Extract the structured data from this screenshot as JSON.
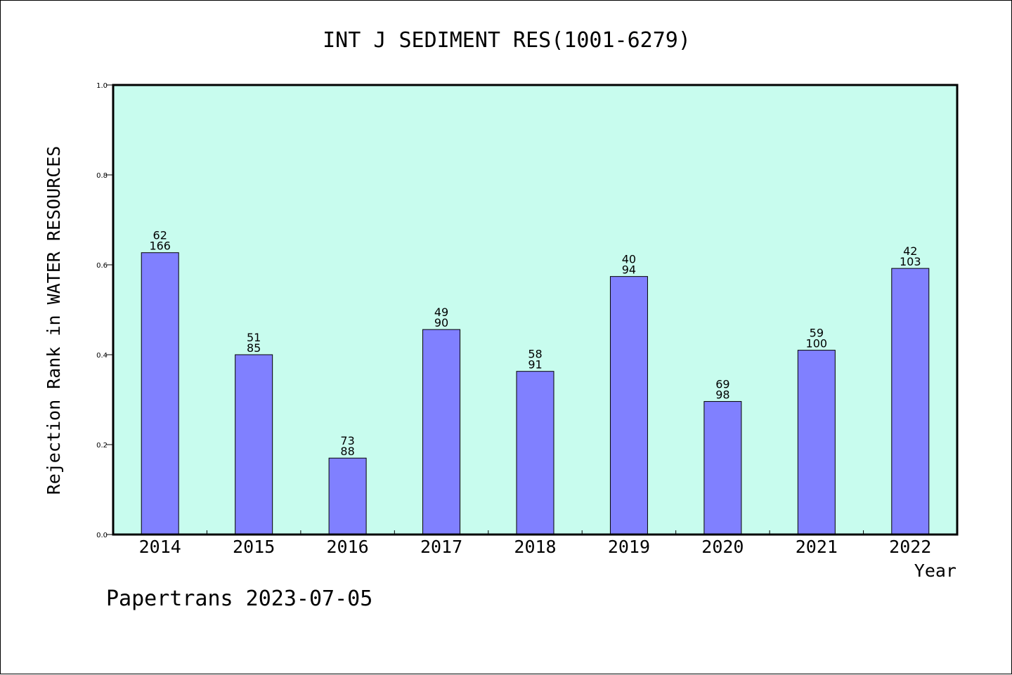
{
  "chart_data": {
    "type": "bar",
    "title": "INT J SEDIMENT RES(1001-6279)",
    "xlabel": "Year",
    "ylabel": "Rejection Rank in WATER RESOURCES",
    "ylim": [
      0,
      1.0
    ],
    "yticks": [
      "0.0",
      "0.2",
      "0.4",
      "0.6",
      "0.8",
      "1.0"
    ],
    "grid": false,
    "categories": [
      "2014",
      "2015",
      "2016",
      "2017",
      "2018",
      "2019",
      "2020",
      "2021",
      "2022"
    ],
    "values": [
      0.627,
      0.4,
      0.17,
      0.456,
      0.363,
      0.574,
      0.296,
      0.41,
      0.592
    ],
    "label_top": [
      "62",
      "51",
      "73",
      "49",
      "58",
      "40",
      "69",
      "59",
      "42"
    ],
    "label_bottom": [
      "166",
      "85",
      "88",
      "90",
      "91",
      "94",
      "98",
      "100",
      "103"
    ],
    "colors": {
      "plot_background": "#c8fcee",
      "bar_fill": "#8080ff",
      "bar_stroke": "#000000"
    }
  },
  "footer": {
    "text": "Papertrans 2023-07-05"
  }
}
